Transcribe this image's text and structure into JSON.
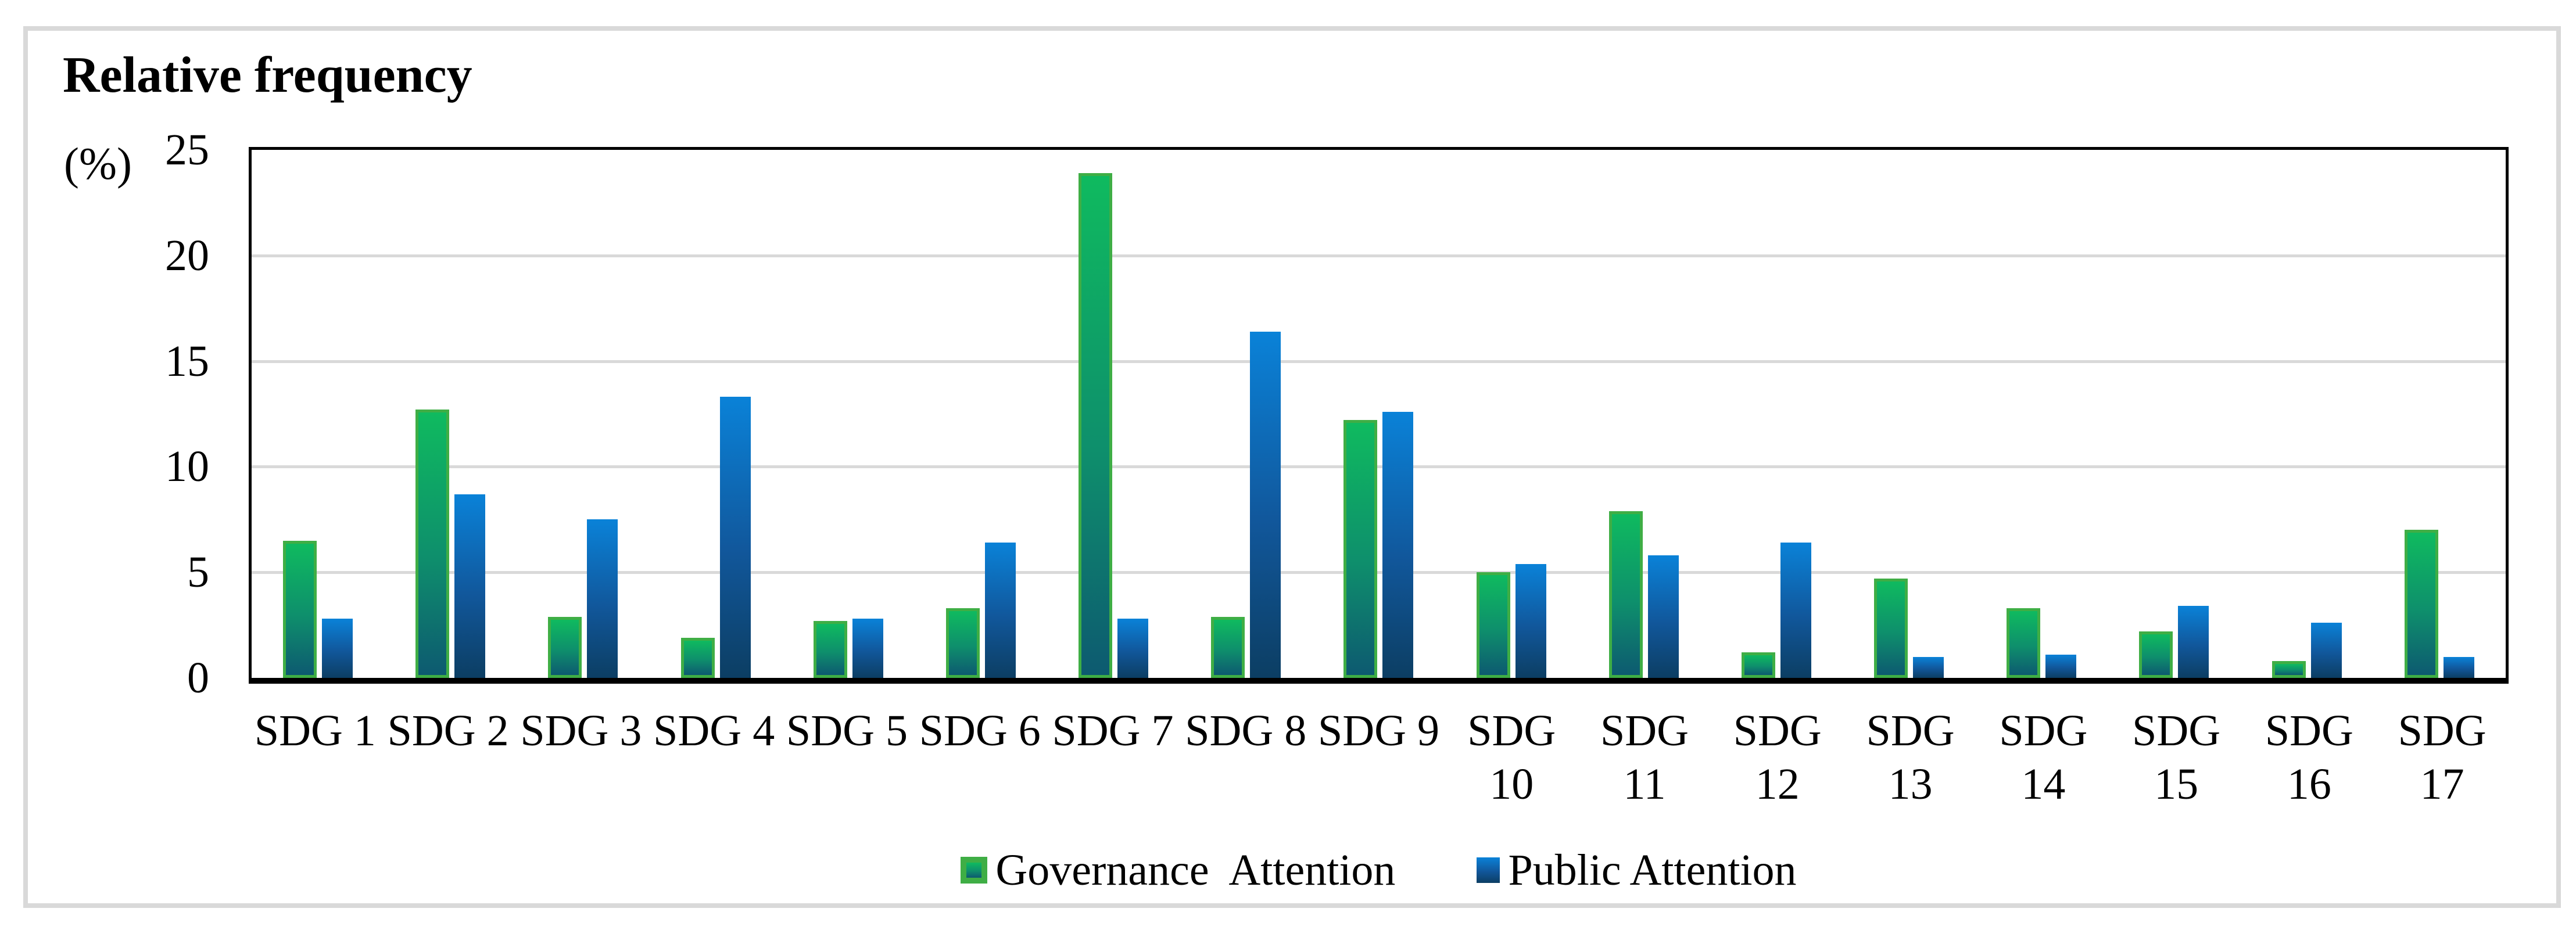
{
  "figure": {
    "title": "Relative frequency",
    "y_unit_label": "(%)"
  },
  "chart_data": {
    "type": "bar",
    "title": "Relative frequency (%)",
    "xlabel": "",
    "ylabel": "Relative frequency (%)",
    "ylim": [
      0,
      25
    ],
    "yticks": [
      0,
      5,
      10,
      15,
      20,
      25
    ],
    "grid": true,
    "legend_position": "bottom",
    "categories": [
      "SDG 1",
      "SDG 2",
      "SDG 3",
      "SDG 4",
      "SDG 5",
      "SDG 6",
      "SDG 7",
      "SDG 8",
      "SDG 9",
      "SDG 10",
      "SDG 11",
      "SDG 12",
      "SDG 13",
      "SDG 14",
      "SDG 15",
      "SDG 16",
      "SDG 17"
    ],
    "wrap_labels_from_index": 9,
    "series": [
      {
        "name": "Governance  Attention",
        "values": [
          6.5,
          12.7,
          2.9,
          1.9,
          2.7,
          3.3,
          23.9,
          2.9,
          12.2,
          5.0,
          7.9,
          1.2,
          4.7,
          3.3,
          2.2,
          0.8,
          7.0
        ],
        "color_top": "#0FBA5F",
        "color_mid": "#0E8F6C",
        "color_bottom": "#0D5A70",
        "border_color": "#3FAE45"
      },
      {
        "name": "Public Attention",
        "values": [
          2.8,
          8.7,
          7.5,
          13.3,
          2.8,
          6.4,
          2.8,
          16.4,
          12.6,
          5.4,
          5.8,
          6.4,
          1.0,
          1.1,
          3.4,
          2.6,
          1.0
        ],
        "color_top": "#0A82D8",
        "color_mid": "#11579B",
        "color_bottom": "#0C3E63"
      }
    ],
    "colors": {
      "gridline": "#D9D9D9",
      "figure_border": "#D9D9D9",
      "axis": "#000000",
      "text": "#000000"
    }
  }
}
